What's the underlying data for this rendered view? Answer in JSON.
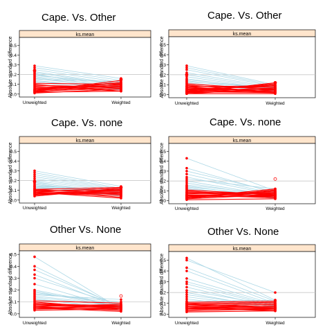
{
  "chart_data": [
    {
      "type": "line",
      "title": "Cape. Vs. Other",
      "strip_label": "ks.mean",
      "ylabel": "Absolute standard difference",
      "categories": [
        "Unweighted",
        "Weighted"
      ],
      "yticks": [
        "0.0",
        "0.1",
        "0.2",
        "0.3",
        "0.4",
        "0.5"
      ],
      "ylim": [
        -0.03,
        0.58
      ],
      "reference_line": 0.2,
      "grid": false,
      "colors": {
        "small": "#add8e6",
        "large": "#ff0000"
      },
      "pairs": [
        [
          0.29,
          0.16
        ],
        [
          0.27,
          0.14
        ],
        [
          0.25,
          0.12
        ],
        [
          0.23,
          0.1
        ],
        [
          0.2,
          0.08
        ],
        [
          0.18,
          0.07
        ],
        [
          0.16,
          0.06
        ],
        [
          0.14,
          0.05
        ],
        [
          0.12,
          0.04
        ],
        [
          0.1,
          0.03
        ],
        [
          0.08,
          0.03
        ],
        [
          0.22,
          0.09
        ],
        [
          0.19,
          0.11
        ],
        [
          0.15,
          0.13
        ],
        [
          0.11,
          0.1
        ],
        [
          0.07,
          0.09
        ],
        [
          0.05,
          0.11
        ],
        [
          0.04,
          0.12
        ],
        [
          0.03,
          0.14
        ],
        [
          0.02,
          0.1
        ],
        [
          0.06,
          0.08
        ],
        [
          0.09,
          0.07
        ],
        [
          0.13,
          0.06
        ],
        [
          0.17,
          0.05
        ],
        [
          0.21,
          0.04
        ],
        [
          0.01,
          0.05
        ],
        [
          0.03,
          0.06
        ],
        [
          0.05,
          0.08
        ],
        [
          0.04,
          0.07
        ],
        [
          0.02,
          0.03
        ]
      ],
      "open_points": [
        {
          "x": "Unweighted",
          "y": 0.24
        },
        {
          "x": "Weighted",
          "y": 0.15
        }
      ]
    },
    {
      "type": "line",
      "title": "Cape. Vs. Other",
      "strip_label": "ks.mean",
      "ylabel": "Absolute standard difference",
      "categories": [
        "Unweighted",
        "Weighted"
      ],
      "yticks": [
        "0.0",
        "0.1",
        "0.2",
        "0.3",
        "0.4",
        "0.5"
      ],
      "ylim": [
        -0.03,
        0.58
      ],
      "reference_line": 0.2,
      "grid": false,
      "colors": {
        "small": "#add8e6",
        "large": "#ff0000"
      },
      "pairs": [
        [
          0.29,
          0.1
        ],
        [
          0.27,
          0.09
        ],
        [
          0.25,
          0.08
        ],
        [
          0.22,
          0.07
        ],
        [
          0.2,
          0.06
        ],
        [
          0.18,
          0.05
        ],
        [
          0.16,
          0.04
        ],
        [
          0.14,
          0.03
        ],
        [
          0.12,
          0.03
        ],
        [
          0.1,
          0.02
        ],
        [
          0.08,
          0.02
        ],
        [
          0.06,
          0.08
        ],
        [
          0.05,
          0.09
        ],
        [
          0.04,
          0.1
        ],
        [
          0.03,
          0.11
        ],
        [
          0.02,
          0.12
        ],
        [
          0.01,
          0.06
        ],
        [
          0.03,
          0.07
        ],
        [
          0.05,
          0.05
        ],
        [
          0.07,
          0.04
        ],
        [
          0.09,
          0.06
        ],
        [
          0.11,
          0.05
        ],
        [
          0.02,
          0.04
        ],
        [
          0.04,
          0.03
        ],
        [
          0.13,
          0.07
        ],
        [
          0.15,
          0.06
        ],
        [
          0.06,
          0.02
        ],
        [
          0.01,
          0.01
        ],
        [
          0.03,
          0.02
        ],
        [
          0.08,
          0.09
        ]
      ],
      "open_points": [
        {
          "x": "Unweighted",
          "y": 0.2
        },
        {
          "x": "Weighted",
          "y": 0.12
        }
      ]
    },
    {
      "type": "line",
      "title": "Cape. Vs. none",
      "strip_label": "ks.mean",
      "ylabel": "Absolute standard difference",
      "categories": [
        "Unweighted",
        "Weighted"
      ],
      "yticks": [
        "0.0",
        "0.1",
        "0.2",
        "0.3",
        "0.4",
        "0.5"
      ],
      "ylim": [
        -0.03,
        0.58
      ],
      "reference_line": 0.2,
      "grid": false,
      "colors": {
        "small": "#add8e6",
        "large": "#ff0000"
      },
      "pairs": [
        [
          0.3,
          0.14
        ],
        [
          0.28,
          0.12
        ],
        [
          0.26,
          0.11
        ],
        [
          0.24,
          0.1
        ],
        [
          0.22,
          0.09
        ],
        [
          0.2,
          0.08
        ],
        [
          0.18,
          0.07
        ],
        [
          0.16,
          0.06
        ],
        [
          0.14,
          0.05
        ],
        [
          0.12,
          0.04
        ],
        [
          0.1,
          0.03
        ],
        [
          0.08,
          0.02
        ],
        [
          0.06,
          0.1
        ],
        [
          0.05,
          0.11
        ],
        [
          0.04,
          0.12
        ],
        [
          0.07,
          0.08
        ],
        [
          0.09,
          0.06
        ],
        [
          0.11,
          0.07
        ],
        [
          0.13,
          0.09
        ],
        [
          0.15,
          0.08
        ],
        [
          0.17,
          0.05
        ],
        [
          0.19,
          0.04
        ],
        [
          0.1,
          0.1
        ],
        [
          0.08,
          0.09
        ],
        [
          0.06,
          0.07
        ],
        [
          0.12,
          0.11
        ],
        [
          0.14,
          0.1
        ],
        [
          0.09,
          0.12
        ],
        [
          0.11,
          0.13
        ],
        [
          0.07,
          0.05
        ]
      ],
      "open_points": [
        {
          "x": "Unweighted",
          "y": 0.19
        },
        {
          "x": "Weighted",
          "y": 0.13
        }
      ]
    },
    {
      "type": "line",
      "title": "Cape. Vs. none",
      "strip_label": "ks.mean",
      "ylabel": "Absolute standard difference",
      "categories": [
        "Unweighted",
        "Weighted"
      ],
      "yticks": [
        "0.0",
        "0.1",
        "0.2",
        "0.3",
        "0.4",
        "0.5"
      ],
      "ylim": [
        -0.03,
        0.58
      ],
      "reference_line": 0.2,
      "grid": false,
      "colors": {
        "small": "#add8e6",
        "large": "#ff0000"
      },
      "pairs": [
        [
          0.43,
          0.1
        ],
        [
          0.33,
          0.08
        ],
        [
          0.3,
          0.09
        ],
        [
          0.27,
          0.07
        ],
        [
          0.24,
          0.06
        ],
        [
          0.22,
          0.12
        ],
        [
          0.2,
          0.05
        ],
        [
          0.18,
          0.04
        ],
        [
          0.16,
          0.06
        ],
        [
          0.14,
          0.05
        ],
        [
          0.12,
          0.03
        ],
        [
          0.1,
          0.04
        ],
        [
          0.08,
          0.05
        ],
        [
          0.06,
          0.06
        ],
        [
          0.05,
          0.08
        ],
        [
          0.04,
          0.1
        ],
        [
          0.03,
          0.12
        ],
        [
          0.02,
          0.11
        ],
        [
          0.07,
          0.09
        ],
        [
          0.09,
          0.07
        ],
        [
          0.11,
          0.06
        ],
        [
          0.04,
          0.05
        ],
        [
          0.05,
          0.04
        ],
        [
          0.06,
          0.03
        ],
        [
          0.03,
          0.07
        ],
        [
          0.02,
          0.06
        ],
        [
          0.08,
          0.08
        ],
        [
          0.13,
          0.02
        ],
        [
          0.15,
          0.03
        ],
        [
          0.01,
          0.02
        ]
      ],
      "open_points": [
        {
          "x": "Weighted",
          "y": 0.22
        }
      ]
    },
    {
      "type": "line",
      "title": "Other Vs. None",
      "strip_label": "ks.mean",
      "ylabel": "Absolute standard difference",
      "categories": [
        "Unweighted",
        "Weighted"
      ],
      "yticks": [
        "0.0",
        "0.1",
        "0.2",
        "0.3",
        "0.4",
        "0.5"
      ],
      "ylim": [
        -0.03,
        0.53
      ],
      "reference_line": 0.1,
      "grid": false,
      "colors": {
        "small": "#add8e6",
        "large": "#ff0000"
      },
      "pairs": [
        [
          0.48,
          0.04
        ],
        [
          0.4,
          0.05
        ],
        [
          0.37,
          0.06
        ],
        [
          0.33,
          0.05
        ],
        [
          0.3,
          0.07
        ],
        [
          0.25,
          0.04
        ],
        [
          0.2,
          0.06
        ],
        [
          0.19,
          0.05
        ],
        [
          0.18,
          0.08
        ],
        [
          0.17,
          0.1
        ],
        [
          0.16,
          0.12
        ],
        [
          0.15,
          0.07
        ],
        [
          0.14,
          0.06
        ],
        [
          0.13,
          0.03
        ],
        [
          0.12,
          0.05
        ],
        [
          0.11,
          0.09
        ],
        [
          0.1,
          0.04
        ],
        [
          0.09,
          0.06
        ],
        [
          0.08,
          0.07
        ],
        [
          0.07,
          0.05
        ],
        [
          0.06,
          0.08
        ],
        [
          0.05,
          0.06
        ],
        [
          0.04,
          0.05
        ],
        [
          0.05,
          0.04
        ],
        [
          0.06,
          0.03
        ],
        [
          0.04,
          0.07
        ],
        [
          0.07,
          0.06
        ],
        [
          0.08,
          0.05
        ],
        [
          0.03,
          0.04
        ],
        [
          0.05,
          0.02
        ]
      ],
      "open_points": [
        {
          "x": "Weighted",
          "y": 0.15
        }
      ]
    },
    {
      "type": "line",
      "title": "Other Vs. None",
      "strip_label": "ks.mean",
      "ylabel": "Absolute standard difference",
      "categories": [
        "Unweighted",
        "Weighted"
      ],
      "yticks": [
        "0.0",
        "0.1",
        "0.2",
        "0.3",
        "0.4",
        "0.5"
      ],
      "ylim": [
        -0.03,
        0.58
      ],
      "reference_line": 0.2,
      "grid": false,
      "colors": {
        "small": "#add8e6",
        "large": "#ff0000"
      },
      "pairs": [
        [
          0.52,
          0.13
        ],
        [
          0.5,
          0.2
        ],
        [
          0.43,
          0.12
        ],
        [
          0.4,
          0.1
        ],
        [
          0.33,
          0.09
        ],
        [
          0.3,
          0.08
        ],
        [
          0.28,
          0.07
        ],
        [
          0.25,
          0.06
        ],
        [
          0.22,
          0.08
        ],
        [
          0.2,
          0.05
        ],
        [
          0.18,
          0.07
        ],
        [
          0.16,
          0.06
        ],
        [
          0.14,
          0.05
        ],
        [
          0.12,
          0.13
        ],
        [
          0.11,
          0.12
        ],
        [
          0.1,
          0.11
        ],
        [
          0.09,
          0.1
        ],
        [
          0.08,
          0.09
        ],
        [
          0.07,
          0.06
        ],
        [
          0.06,
          0.05
        ],
        [
          0.05,
          0.04
        ],
        [
          0.04,
          0.06
        ],
        [
          0.06,
          0.03
        ],
        [
          0.05,
          0.08
        ],
        [
          0.07,
          0.04
        ],
        [
          0.03,
          0.05
        ],
        [
          0.08,
          0.06
        ],
        [
          0.09,
          0.07
        ],
        [
          0.1,
          0.05
        ],
        [
          0.02,
          0.03
        ]
      ],
      "open_points": []
    }
  ]
}
